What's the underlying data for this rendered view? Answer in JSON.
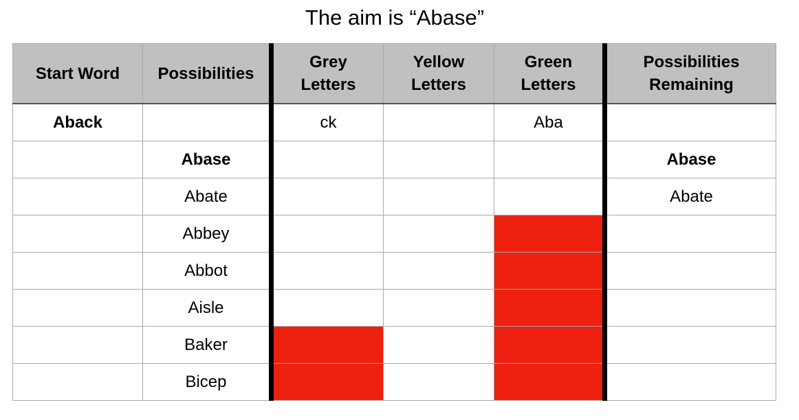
{
  "title": "The aim is “Abase”",
  "colors": {
    "header_bg": "#c0c0c0",
    "eliminated_red": "#ee2010"
  },
  "columns": [
    {
      "label": "Start Word"
    },
    {
      "label": "Possibilities"
    },
    {
      "label": "Grey Letters"
    },
    {
      "label": "Yellow Letters"
    },
    {
      "label": "Green Letters"
    },
    {
      "label": "Possibilities Remaining"
    }
  ],
  "rows": [
    {
      "start_word": "Aback",
      "possibility": "",
      "grey": "ck",
      "yellow": "",
      "green": "Aba",
      "remaining": ""
    },
    {
      "start_word": "",
      "possibility": "Abase",
      "grey": "",
      "yellow": "",
      "green": "",
      "remaining": "Abase"
    },
    {
      "start_word": "",
      "possibility": "Abate",
      "grey": "",
      "yellow": "",
      "green": "",
      "remaining": "Abate"
    },
    {
      "start_word": "",
      "possibility": "Abbey",
      "grey": "",
      "yellow": "",
      "green": "",
      "remaining": ""
    },
    {
      "start_word": "",
      "possibility": "Abbot",
      "grey": "",
      "yellow": "",
      "green": "",
      "remaining": ""
    },
    {
      "start_word": "",
      "possibility": "Aisle",
      "grey": "",
      "yellow": "",
      "green": "",
      "remaining": ""
    },
    {
      "start_word": "",
      "possibility": "Baker",
      "grey": "",
      "yellow": "",
      "green": "",
      "remaining": ""
    },
    {
      "start_word": "",
      "possibility": "Bicep",
      "grey": "",
      "yellow": "",
      "green": "",
      "remaining": ""
    }
  ],
  "eliminated": {
    "grey": [
      "Baker",
      "Bicep"
    ],
    "green": [
      "Abbey",
      "Abbot",
      "Aisle",
      "Baker",
      "Bicep"
    ]
  }
}
